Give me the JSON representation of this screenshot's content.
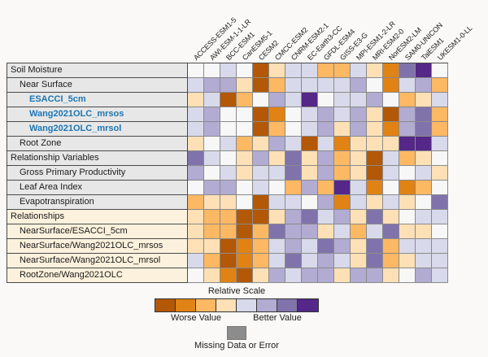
{
  "palette": {
    "O4": "#b35806",
    "O3": "#e08214",
    "O2": "#fdb863",
    "O1": "#fee0b6",
    "W": "#f7f7f7",
    "P1": "#d8daeb",
    "P2": "#b2abd2",
    "P3": "#8073ac",
    "P4": "#542788",
    "missing": "#8c8c8c"
  },
  "chart_data": {
    "type": "heatmap",
    "title": "",
    "legend_position": "bottom",
    "value_encoding": "relative scale from Worse Value (dark orange) to Better Value (dark purple)",
    "columns": [
      "ACCESS-ESM1-5",
      "AWI-ESM-1-1-LR",
      "BCC-ESM1",
      "CanESM5-1",
      "CESM2",
      "CMCC-ESM2",
      "CNRM-ESM2-1",
      "EC-Earth3-CC",
      "GFDL-ESM4",
      "GISS-E3-G",
      "MPI-ESM1-2-LR",
      "MRI-ESM2-0",
      "NorESM2-LM",
      "SAM0-UNICON",
      "TaiESM1",
      "UKESM1-0-LL"
    ],
    "rows": [
      {
        "label": "Soil Moisture",
        "indent": 0,
        "section": "variables",
        "dataset": false,
        "cells": [
          "W",
          "W",
          "P1",
          "W",
          "O4",
          "O1",
          "P1",
          "P1",
          "O2",
          "O2",
          "P1",
          "O1",
          "O3",
          "P3",
          "P4",
          "W"
        ]
      },
      {
        "label": "Near Surface",
        "indent": 1,
        "section": "variables",
        "dataset": false,
        "cells": [
          "P1",
          "P2",
          "P2",
          "O1",
          "O4",
          "O2",
          "P1",
          "P1",
          "P1",
          "P1",
          "P2",
          "W",
          "O3",
          "P1",
          "P2",
          "O2"
        ]
      },
      {
        "label": "ESACCI_5cm",
        "indent": 2,
        "section": "variables",
        "dataset": true,
        "cells": [
          "O1",
          "P1",
          "O4",
          "O2",
          "W",
          "P2",
          "P1",
          "P4",
          "W",
          "P1",
          "P1",
          "P2",
          "W",
          "O2",
          "O1",
          "P1"
        ]
      },
      {
        "label": "Wang2021OLC_mrsos",
        "indent": 2,
        "section": "variables",
        "dataset": true,
        "cells": [
          "P1",
          "P2",
          "W",
          "W",
          "O4",
          "O3",
          "W",
          "P1",
          "P2",
          "P1",
          "P2",
          "O1",
          "O4",
          "P2",
          "P3",
          "O2"
        ]
      },
      {
        "label": "Wang2021OLC_mrsol",
        "indent": 2,
        "section": "variables",
        "dataset": true,
        "cells": [
          "P1",
          "P2",
          "W",
          "W",
          "O4",
          "O2",
          "W",
          "P1",
          "P2",
          "O1",
          "P2",
          "O1",
          "O3",
          "P2",
          "P3",
          "O2"
        ]
      },
      {
        "label": "Root Zone",
        "indent": 1,
        "section": "variables",
        "dataset": false,
        "cells": [
          "O1",
          "W",
          "P1",
          "O2",
          "O1",
          "P2",
          "P1",
          "O4",
          "P1",
          "O3",
          "O1",
          "O1",
          "O1",
          "P4",
          "P4",
          "P1"
        ]
      },
      {
        "label": "Relationship Variables",
        "indent": 0,
        "section": "variables",
        "dataset": false,
        "cells": [
          "P3",
          "P1",
          "W",
          "O1",
          "P2",
          "O1",
          "P3",
          "O1",
          "P2",
          "O2",
          "O1",
          "O4",
          "P1",
          "O2",
          "O1",
          "W"
        ]
      },
      {
        "label": "Gross Primary Productivity",
        "indent": 1,
        "section": "variables",
        "dataset": false,
        "cells": [
          "P2",
          "W",
          "P1",
          "O1",
          "P1",
          "P1",
          "P3",
          "O1",
          "P2",
          "O2",
          "O1",
          "O4",
          "P1",
          "W",
          "P1",
          "O1"
        ]
      },
      {
        "label": "Leaf Area Index",
        "indent": 1,
        "section": "variables",
        "dataset": false,
        "cells": [
          "W",
          "P2",
          "P2",
          "W",
          "P1",
          "W",
          "O2",
          "P2",
          "O2",
          "P4",
          "P1",
          "O3",
          "W",
          "O3",
          "O2",
          "W"
        ]
      },
      {
        "label": "Evapotranspiration",
        "indent": 1,
        "section": "variables",
        "dataset": false,
        "cells": [
          "O2",
          "O1",
          "O1",
          "W",
          "O4",
          "P1",
          "P1",
          "W",
          "P2",
          "O3",
          "P1",
          "O1",
          "P1",
          "O1",
          "W",
          "P3"
        ]
      },
      {
        "label": "Relationships",
        "indent": 0,
        "section": "relationships",
        "dataset": false,
        "cells": [
          "O1",
          "O2",
          "O2",
          "O4",
          "O4",
          "O1",
          "P2",
          "P3",
          "P1",
          "P2",
          "O1",
          "P3",
          "O1",
          "W",
          "P1",
          "P1"
        ]
      },
      {
        "label": "NearSurface/ESACCI_5cm",
        "indent": 1,
        "section": "relationships",
        "dataset": false,
        "cells": [
          "O1",
          "O2",
          "O2",
          "O4",
          "O2",
          "P3",
          "P2",
          "P2",
          "O1",
          "P1",
          "O2",
          "P1",
          "P3",
          "O1",
          "O1",
          "W"
        ]
      },
      {
        "label": "NearSurface/Wang2021OLC_mrsos",
        "indent": 1,
        "section": "relationships",
        "dataset": false,
        "cells": [
          "O1",
          "O1",
          "O4",
          "O3",
          "O2",
          "P1",
          "P2",
          "P1",
          "P3",
          "P2",
          "O1",
          "P3",
          "O2",
          "P1",
          "P1",
          "P1"
        ]
      },
      {
        "label": "NearSurface/Wang2021OLC_mrsol",
        "indent": 1,
        "section": "relationships",
        "dataset": false,
        "cells": [
          "P1",
          "O2",
          "O4",
          "O3",
          "O2",
          "P1",
          "P3",
          "P1",
          "P2",
          "P1",
          "O1",
          "P3",
          "O2",
          "O1",
          "P1",
          "P1"
        ]
      },
      {
        "label": "RootZone/Wang2021OLC",
        "indent": 1,
        "section": "relationships",
        "dataset": false,
        "cells": [
          "W",
          "O1",
          "O3",
          "O4",
          "O1",
          "P2",
          "P1",
          "P2",
          "P2",
          "O1",
          "P2",
          "P2",
          "O1",
          "W",
          "P2",
          "P1"
        ]
      }
    ]
  },
  "legend": {
    "title": "Relative Scale",
    "swatches": [
      "O4",
      "O3",
      "O2",
      "O1",
      "P1",
      "P2",
      "P3",
      "P4"
    ],
    "worse_label": "Worse Value",
    "better_label": "Better Value",
    "missing_label": "Missing Data or Error"
  }
}
